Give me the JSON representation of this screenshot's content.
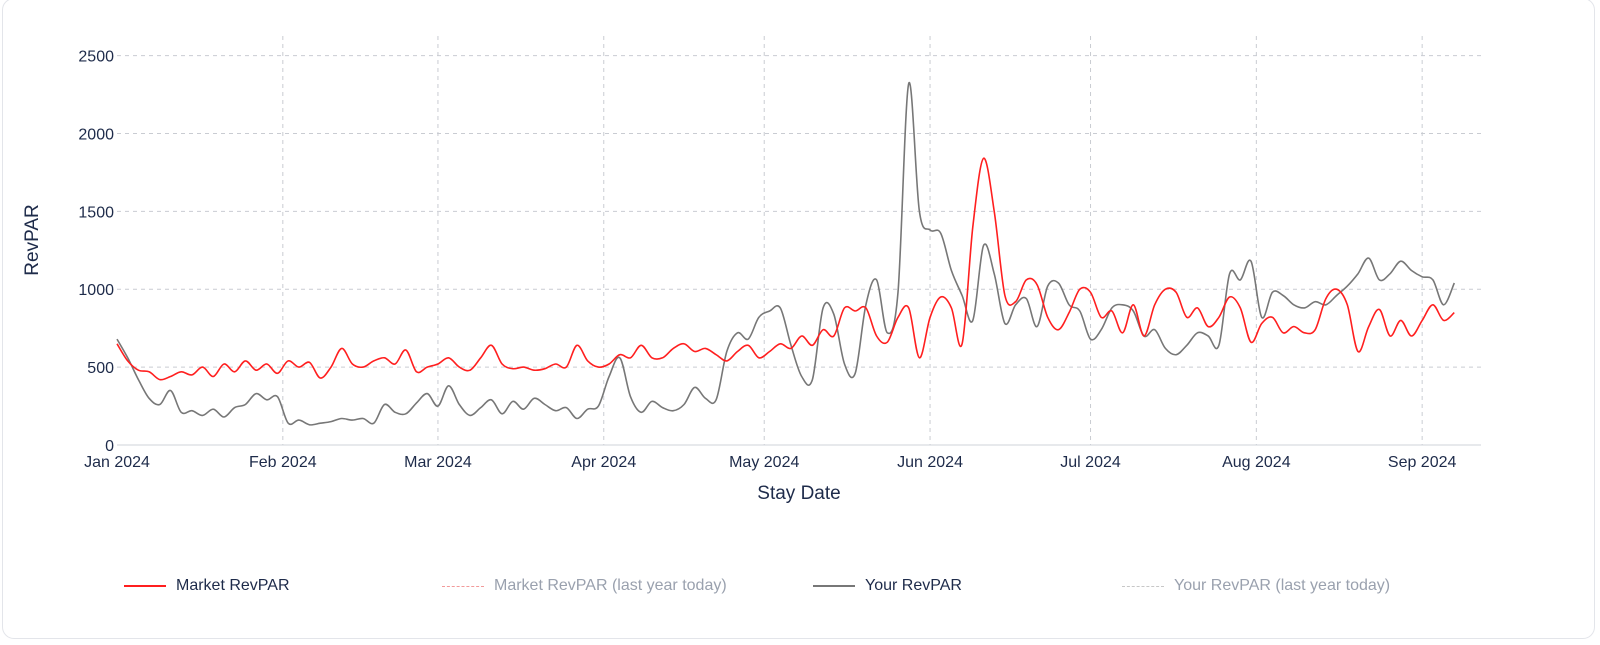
{
  "chart_data": {
    "type": "line",
    "xlabel": "Stay Date",
    "ylabel": "RevPAR",
    "xlim": [
      "2024-01-01",
      "2024-09-12"
    ],
    "ylim": [
      0,
      2600
    ],
    "grid": true,
    "y_ticks": [
      "0",
      "500",
      "1000",
      "1500",
      "2000",
      "2500"
    ],
    "x_ticks": [
      "Jan 2024",
      "Feb 2024",
      "Mar 2024",
      "Apr 2024",
      "May 2024",
      "Jun 2024",
      "Jul 2024",
      "Aug 2024",
      "Sep 2024"
    ],
    "legend_position": "bottom",
    "series": [
      {
        "name": "Market RevPAR",
        "color": "#ff1f1f",
        "style": "solid",
        "visible": true,
        "points": [
          [
            "2024-01-01",
            650
          ],
          [
            "2024-01-03",
            540
          ],
          [
            "2024-01-05",
            480
          ],
          [
            "2024-01-07",
            470
          ],
          [
            "2024-01-09",
            420
          ],
          [
            "2024-01-11",
            440
          ],
          [
            "2024-01-13",
            470
          ],
          [
            "2024-01-15",
            450
          ],
          [
            "2024-01-17",
            500
          ],
          [
            "2024-01-19",
            440
          ],
          [
            "2024-01-21",
            520
          ],
          [
            "2024-01-23",
            470
          ],
          [
            "2024-01-25",
            540
          ],
          [
            "2024-01-27",
            480
          ],
          [
            "2024-01-29",
            520
          ],
          [
            "2024-01-31",
            460
          ],
          [
            "2024-02-02",
            540
          ],
          [
            "2024-02-04",
            500
          ],
          [
            "2024-02-06",
            530
          ],
          [
            "2024-02-08",
            430
          ],
          [
            "2024-02-10",
            500
          ],
          [
            "2024-02-12",
            620
          ],
          [
            "2024-02-14",
            520
          ],
          [
            "2024-02-16",
            500
          ],
          [
            "2024-02-18",
            540
          ],
          [
            "2024-02-20",
            560
          ],
          [
            "2024-02-22",
            520
          ],
          [
            "2024-02-24",
            610
          ],
          [
            "2024-02-26",
            470
          ],
          [
            "2024-02-28",
            500
          ],
          [
            "2024-03-01",
            520
          ],
          [
            "2024-03-03",
            560
          ],
          [
            "2024-03-05",
            500
          ],
          [
            "2024-03-07",
            480
          ],
          [
            "2024-03-09",
            560
          ],
          [
            "2024-03-11",
            640
          ],
          [
            "2024-03-13",
            520
          ],
          [
            "2024-03-15",
            490
          ],
          [
            "2024-03-17",
            500
          ],
          [
            "2024-03-19",
            480
          ],
          [
            "2024-03-21",
            490
          ],
          [
            "2024-03-23",
            520
          ],
          [
            "2024-03-25",
            500
          ],
          [
            "2024-03-27",
            640
          ],
          [
            "2024-03-29",
            540
          ],
          [
            "2024-03-31",
            500
          ],
          [
            "2024-04-02",
            520
          ],
          [
            "2024-04-04",
            580
          ],
          [
            "2024-04-06",
            560
          ],
          [
            "2024-04-08",
            640
          ],
          [
            "2024-04-10",
            560
          ],
          [
            "2024-04-12",
            560
          ],
          [
            "2024-04-14",
            620
          ],
          [
            "2024-04-16",
            650
          ],
          [
            "2024-04-18",
            600
          ],
          [
            "2024-04-20",
            620
          ],
          [
            "2024-04-22",
            580
          ],
          [
            "2024-04-24",
            540
          ],
          [
            "2024-04-26",
            600
          ],
          [
            "2024-04-28",
            640
          ],
          [
            "2024-04-30",
            560
          ],
          [
            "2024-05-02",
            600
          ],
          [
            "2024-05-04",
            650
          ],
          [
            "2024-05-06",
            620
          ],
          [
            "2024-05-08",
            700
          ],
          [
            "2024-05-10",
            640
          ],
          [
            "2024-05-12",
            740
          ],
          [
            "2024-05-14",
            700
          ],
          [
            "2024-05-16",
            880
          ],
          [
            "2024-05-18",
            860
          ],
          [
            "2024-05-20",
            880
          ],
          [
            "2024-05-22",
            700
          ],
          [
            "2024-05-24",
            660
          ],
          [
            "2024-05-26",
            820
          ],
          [
            "2024-05-28",
            880
          ],
          [
            "2024-05-30",
            560
          ],
          [
            "2024-06-01",
            820
          ],
          [
            "2024-06-03",
            950
          ],
          [
            "2024-06-05",
            880
          ],
          [
            "2024-06-07",
            650
          ],
          [
            "2024-06-09",
            1400
          ],
          [
            "2024-06-11",
            1840
          ],
          [
            "2024-06-13",
            1500
          ],
          [
            "2024-06-15",
            960
          ],
          [
            "2024-06-17",
            920
          ],
          [
            "2024-06-19",
            1060
          ],
          [
            "2024-06-21",
            1030
          ],
          [
            "2024-06-23",
            820
          ],
          [
            "2024-06-25",
            740
          ],
          [
            "2024-06-27",
            850
          ],
          [
            "2024-06-29",
            1000
          ],
          [
            "2024-07-01",
            980
          ],
          [
            "2024-07-03",
            820
          ],
          [
            "2024-07-05",
            860
          ],
          [
            "2024-07-07",
            720
          ],
          [
            "2024-07-09",
            900
          ],
          [
            "2024-07-11",
            700
          ],
          [
            "2024-07-13",
            900
          ],
          [
            "2024-07-15",
            1000
          ],
          [
            "2024-07-17",
            980
          ],
          [
            "2024-07-19",
            820
          ],
          [
            "2024-07-21",
            880
          ],
          [
            "2024-07-23",
            760
          ],
          [
            "2024-07-25",
            820
          ],
          [
            "2024-07-27",
            950
          ],
          [
            "2024-07-29",
            880
          ],
          [
            "2024-07-31",
            660
          ],
          [
            "2024-08-02",
            780
          ],
          [
            "2024-08-04",
            820
          ],
          [
            "2024-08-06",
            720
          ],
          [
            "2024-08-08",
            760
          ],
          [
            "2024-08-10",
            720
          ],
          [
            "2024-08-12",
            740
          ],
          [
            "2024-08-14",
            940
          ],
          [
            "2024-08-16",
            1000
          ],
          [
            "2024-08-18",
            900
          ],
          [
            "2024-08-20",
            600
          ],
          [
            "2024-08-22",
            760
          ],
          [
            "2024-08-24",
            870
          ],
          [
            "2024-08-26",
            700
          ],
          [
            "2024-08-28",
            800
          ],
          [
            "2024-08-30",
            700
          ],
          [
            "2024-09-01",
            800
          ],
          [
            "2024-09-03",
            900
          ],
          [
            "2024-09-05",
            800
          ],
          [
            "2024-09-07",
            850
          ]
        ]
      },
      {
        "name": "Market RevPAR (last year today)",
        "color": "#f29a9a",
        "style": "dashdot",
        "visible": false,
        "points": []
      },
      {
        "name": "Your RevPAR",
        "color": "#777777",
        "style": "solid",
        "visible": true,
        "points": [
          [
            "2024-01-01",
            680
          ],
          [
            "2024-01-03",
            560
          ],
          [
            "2024-01-05",
            420
          ],
          [
            "2024-01-07",
            300
          ],
          [
            "2024-01-09",
            260
          ],
          [
            "2024-01-11",
            350
          ],
          [
            "2024-01-13",
            210
          ],
          [
            "2024-01-15",
            220
          ],
          [
            "2024-01-17",
            190
          ],
          [
            "2024-01-19",
            230
          ],
          [
            "2024-01-21",
            180
          ],
          [
            "2024-01-23",
            240
          ],
          [
            "2024-01-25",
            260
          ],
          [
            "2024-01-27",
            330
          ],
          [
            "2024-01-29",
            290
          ],
          [
            "2024-01-31",
            310
          ],
          [
            "2024-02-02",
            140
          ],
          [
            "2024-02-04",
            160
          ],
          [
            "2024-02-06",
            130
          ],
          [
            "2024-02-08",
            140
          ],
          [
            "2024-02-10",
            150
          ],
          [
            "2024-02-12",
            170
          ],
          [
            "2024-02-14",
            160
          ],
          [
            "2024-02-16",
            170
          ],
          [
            "2024-02-18",
            140
          ],
          [
            "2024-02-20",
            260
          ],
          [
            "2024-02-22",
            210
          ],
          [
            "2024-02-24",
            200
          ],
          [
            "2024-02-26",
            270
          ],
          [
            "2024-02-28",
            330
          ],
          [
            "2024-03-01",
            250
          ],
          [
            "2024-03-03",
            380
          ],
          [
            "2024-03-05",
            260
          ],
          [
            "2024-03-07",
            190
          ],
          [
            "2024-03-09",
            240
          ],
          [
            "2024-03-11",
            290
          ],
          [
            "2024-03-13",
            200
          ],
          [
            "2024-03-15",
            280
          ],
          [
            "2024-03-17",
            230
          ],
          [
            "2024-03-19",
            300
          ],
          [
            "2024-03-21",
            260
          ],
          [
            "2024-03-23",
            220
          ],
          [
            "2024-03-25",
            240
          ],
          [
            "2024-03-27",
            170
          ],
          [
            "2024-03-29",
            230
          ],
          [
            "2024-03-31",
            250
          ],
          [
            "2024-04-02",
            440
          ],
          [
            "2024-04-04",
            560
          ],
          [
            "2024-04-06",
            310
          ],
          [
            "2024-04-08",
            210
          ],
          [
            "2024-04-10",
            280
          ],
          [
            "2024-04-12",
            240
          ],
          [
            "2024-04-14",
            220
          ],
          [
            "2024-04-16",
            260
          ],
          [
            "2024-04-18",
            370
          ],
          [
            "2024-04-20",
            300
          ],
          [
            "2024-04-22",
            290
          ],
          [
            "2024-04-24",
            600
          ],
          [
            "2024-04-26",
            720
          ],
          [
            "2024-04-28",
            680
          ],
          [
            "2024-04-30",
            820
          ],
          [
            "2024-05-02",
            860
          ],
          [
            "2024-05-04",
            880
          ],
          [
            "2024-05-06",
            640
          ],
          [
            "2024-05-08",
            440
          ],
          [
            "2024-05-10",
            420
          ],
          [
            "2024-05-12",
            880
          ],
          [
            "2024-05-14",
            840
          ],
          [
            "2024-05-16",
            520
          ],
          [
            "2024-05-18",
            460
          ],
          [
            "2024-05-20",
            900
          ],
          [
            "2024-05-22",
            1060
          ],
          [
            "2024-05-24",
            720
          ],
          [
            "2024-05-26",
            980
          ],
          [
            "2024-05-28",
            2320
          ],
          [
            "2024-05-30",
            1500
          ],
          [
            "2024-06-01",
            1380
          ],
          [
            "2024-06-03",
            1360
          ],
          [
            "2024-06-05",
            1120
          ],
          [
            "2024-06-07",
            960
          ],
          [
            "2024-06-09",
            800
          ],
          [
            "2024-06-11",
            1280
          ],
          [
            "2024-06-13",
            1100
          ],
          [
            "2024-06-15",
            780
          ],
          [
            "2024-06-17",
            900
          ],
          [
            "2024-06-19",
            940
          ],
          [
            "2024-06-21",
            760
          ],
          [
            "2024-06-23",
            1020
          ],
          [
            "2024-06-25",
            1040
          ],
          [
            "2024-06-27",
            900
          ],
          [
            "2024-06-29",
            860
          ],
          [
            "2024-07-01",
            680
          ],
          [
            "2024-07-03",
            740
          ],
          [
            "2024-07-05",
            880
          ],
          [
            "2024-07-07",
            900
          ],
          [
            "2024-07-09",
            860
          ],
          [
            "2024-07-11",
            700
          ],
          [
            "2024-07-13",
            740
          ],
          [
            "2024-07-15",
            620
          ],
          [
            "2024-07-17",
            580
          ],
          [
            "2024-07-19",
            640
          ],
          [
            "2024-07-21",
            720
          ],
          [
            "2024-07-23",
            700
          ],
          [
            "2024-07-25",
            640
          ],
          [
            "2024-07-27",
            1100
          ],
          [
            "2024-07-29",
            1060
          ],
          [
            "2024-07-31",
            1180
          ],
          [
            "2024-08-02",
            820
          ],
          [
            "2024-08-04",
            980
          ],
          [
            "2024-08-06",
            960
          ],
          [
            "2024-08-08",
            900
          ],
          [
            "2024-08-10",
            880
          ],
          [
            "2024-08-12",
            920
          ],
          [
            "2024-08-14",
            900
          ],
          [
            "2024-08-16",
            960
          ],
          [
            "2024-08-18",
            1020
          ],
          [
            "2024-08-20",
            1100
          ],
          [
            "2024-08-22",
            1200
          ],
          [
            "2024-08-24",
            1060
          ],
          [
            "2024-08-26",
            1100
          ],
          [
            "2024-08-28",
            1180
          ],
          [
            "2024-08-30",
            1120
          ],
          [
            "2024-09-01",
            1080
          ],
          [
            "2024-09-03",
            1060
          ],
          [
            "2024-09-05",
            900
          ],
          [
            "2024-09-07",
            1040
          ]
        ]
      },
      {
        "name": "Your RevPAR (last year today)",
        "color": "#c7c7c7",
        "style": "dashdot",
        "visible": false,
        "points": []
      }
    ]
  }
}
